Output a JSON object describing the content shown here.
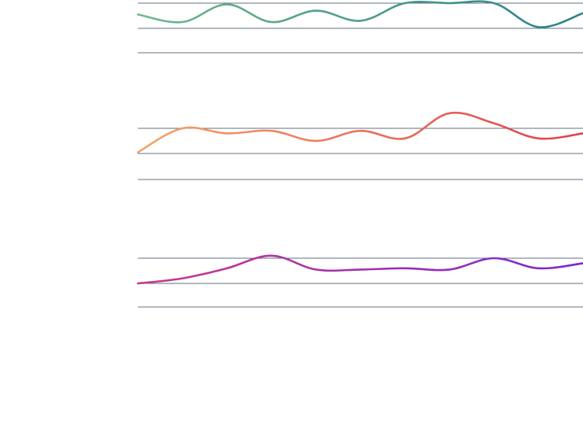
{
  "chart_data": {
    "type": "line",
    "title": "",
    "xlabel": "",
    "ylabel": "",
    "legend": "none",
    "grid": true,
    "x": [
      0,
      1,
      2,
      3,
      4,
      5,
      6,
      7,
      8,
      9,
      10
    ],
    "ylim": [
      0,
      1
    ],
    "panels": [
      {
        "series": [
          {
            "values": [
              0.55,
              0.25,
              0.95,
              0.25,
              0.7,
              0.3,
              1.0,
              1.0,
              1.0,
              0.05,
              0.6
            ],
            "color_start": "#6fb88c",
            "color_end": "#2f7f8a"
          }
        ]
      },
      {
        "series": [
          {
            "values": [
              0.05,
              1.0,
              0.8,
              0.9,
              0.5,
              0.9,
              0.6,
              1.6,
              1.2,
              0.6,
              0.8
            ],
            "color_start": "#f2a66a",
            "color_end": "#e04050"
          }
        ]
      },
      {
        "series": [
          {
            "values": [
              0.0,
              0.2,
              0.6,
              1.1,
              0.55,
              0.55,
              0.6,
              0.55,
              1.0,
              0.6,
              0.8
            ],
            "color_start": "#c83a8a",
            "color_end": "#7a28d0"
          }
        ]
      }
    ]
  }
}
